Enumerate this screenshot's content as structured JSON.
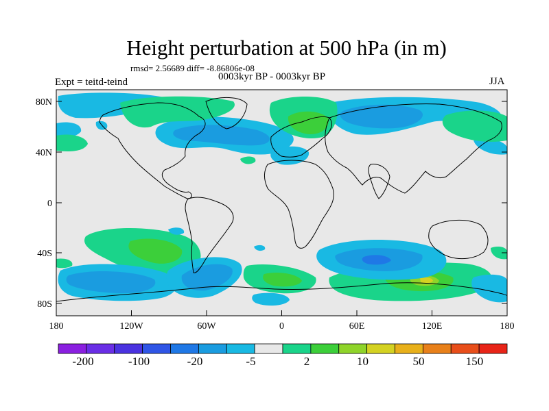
{
  "header": {
    "title": "Height perturbation at 500 hPa (in m)",
    "stats": "rmsd= 2.56689 diff= -8.86806e-08",
    "left_label": "Expt = teitd-teind",
    "center_label": "0003kyr BP - 0003kyr BP",
    "right_label": "JJA"
  },
  "axes": {
    "lat_ticks": [
      "80N",
      "40N",
      "0",
      "40S",
      "80S"
    ],
    "lon_ticks": [
      "180",
      "120W",
      "60W",
      "0",
      "60E",
      "120E",
      "180"
    ]
  },
  "colorbar": {
    "colors": [
      "#8a1fe0",
      "#6a2ee6",
      "#4a32e0",
      "#2f55e6",
      "#1f78e6",
      "#1a9ce0",
      "#19b9e3",
      "#e8e8e8",
      "#1ad48a",
      "#3ccf3a",
      "#8fd42a",
      "#d4d222",
      "#e8b01a",
      "#e8801a",
      "#e84e1a",
      "#e82418"
    ],
    "labels": [
      "-200",
      "-100",
      "-20",
      "-5",
      "2",
      "10",
      "50",
      "150"
    ]
  },
  "field_colors": {
    "background": "#e8e8e8",
    "neg_light": "#19b9e3",
    "neg_mid": "#1a9ce0",
    "neg_dark": "#1f78e6",
    "pos_light": "#1ad48a",
    "pos_mid": "#3ccf3a",
    "pos_high": "#8fd42a",
    "pos_peak": "#d4d222"
  }
}
